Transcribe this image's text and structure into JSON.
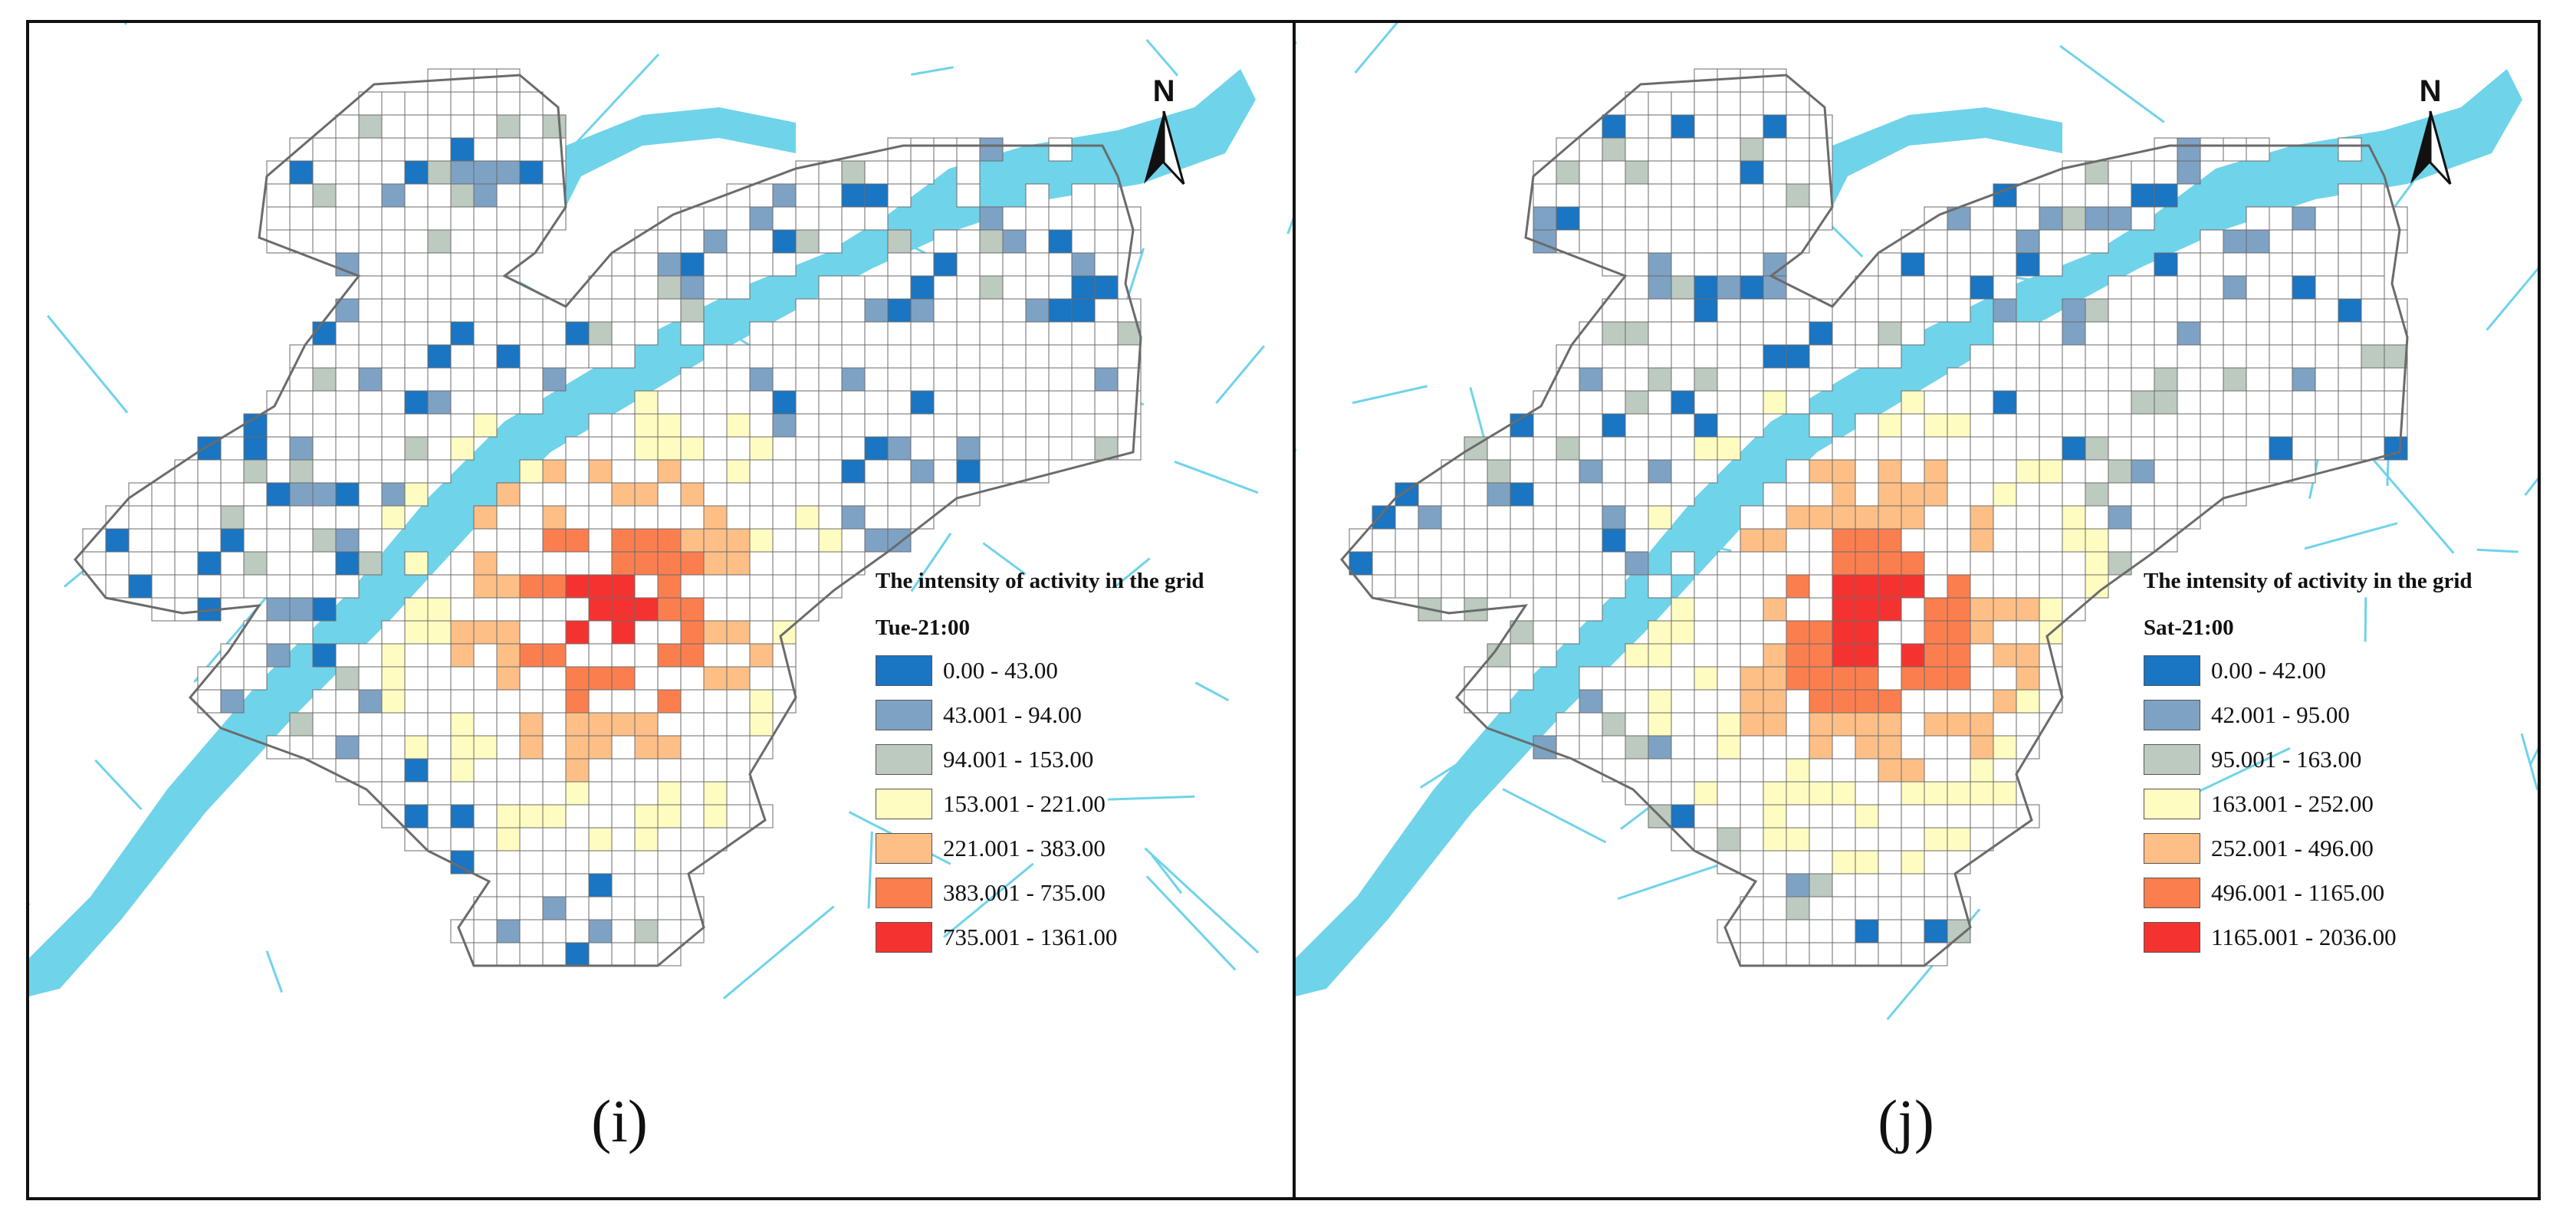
{
  "colors": {
    "water": "#6fd3ea",
    "grid_line": "#6b6b6b",
    "district_outline": "#6b6b6b",
    "empty_cell": "#ffffff",
    "classes": [
      "#1a75c2",
      "#7ea2c4",
      "#bccabf",
      "#fefcc0",
      "#fdbf86",
      "#fb7e4f",
      "#f43331"
    ]
  },
  "panels": [
    {
      "id": "left",
      "legend_title": "The intensity of activity in the grid",
      "legend_subtitle": "Tue-21:00",
      "classes": [
        "0.00 - 43.00",
        "43.001 - 94.00",
        "94.001 - 153.00",
        "153.001 - 221.00",
        "221.001 - 383.00",
        "383.001 - 735.00",
        "735.001 - 1361.00"
      ],
      "north_label": "N",
      "panel_label": "(i)",
      "grid_seed": 7
    },
    {
      "id": "right",
      "legend_title": "The intensity of activity in the grid",
      "legend_subtitle": "Sat-21:00",
      "classes": [
        "0.00 - 42.00",
        "42.001 - 95.00",
        "95.001 - 163.00",
        "163.001 - 252.00",
        "252.001 - 496.00",
        "496.001 - 1165.00",
        "1165.001 - 2036.00"
      ],
      "north_label": "N",
      "panel_label": "(j)",
      "grid_seed": 11
    }
  ]
}
